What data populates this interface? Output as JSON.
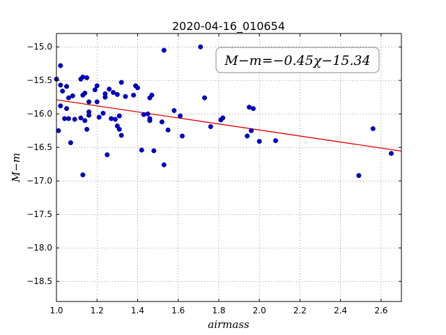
{
  "chart_data": {
    "type": "scatter",
    "title": "2020-04-16_010654",
    "xlabel": "airmass",
    "ylabel": "M−m",
    "xlim": [
      1.0,
      2.7
    ],
    "ylim": [
      -14.8,
      -18.8
    ],
    "y_inverted": true,
    "grid": true,
    "xticks": [
      "1.0",
      "1.2",
      "1.4",
      "1.6",
      "1.8",
      "2.0",
      "2.2",
      "2.4",
      "2.6"
    ],
    "yticks": [
      "−15.0",
      "−15.5",
      "−16.0",
      "−16.5",
      "−17.0",
      "−17.5",
      "−18.0",
      "−18.5"
    ],
    "annotation": "M−m=−0.45χ−15.34",
    "fit": {
      "slope": -0.45,
      "intercept": -15.34,
      "color": "#dd0000"
    },
    "point_color": "#0000cc",
    "points": [
      [
        1.0,
        -15.48
      ],
      [
        1.01,
        -16.25
      ],
      [
        1.02,
        -15.57
      ],
      [
        1.02,
        -15.28
      ],
      [
        1.02,
        -15.88
      ],
      [
        1.03,
        -15.66
      ],
      [
        1.04,
        -16.07
      ],
      [
        1.05,
        -15.59
      ],
      [
        1.05,
        -15.92
      ],
      [
        1.06,
        -16.07
      ],
      [
        1.06,
        -15.76
      ],
      [
        1.07,
        -16.43
      ],
      [
        1.08,
        -15.73
      ],
      [
        1.09,
        -16.08
      ],
      [
        1.12,
        -16.06
      ],
      [
        1.12,
        -15.48
      ],
      [
        1.13,
        -15.45
      ],
      [
        1.13,
        -15.72
      ],
      [
        1.13,
        -16.91
      ],
      [
        1.14,
        -15.69
      ],
      [
        1.14,
        -16.1
      ],
      [
        1.15,
        -15.46
      ],
      [
        1.15,
        -16.23
      ],
      [
        1.16,
        -15.97
      ],
      [
        1.16,
        -16.02
      ],
      [
        1.16,
        -15.82
      ],
      [
        1.19,
        -15.64
      ],
      [
        1.2,
        -15.58
      ],
      [
        1.2,
        -15.82
      ],
      [
        1.21,
        -16.05
      ],
      [
        1.23,
        -15.99
      ],
      [
        1.24,
        -15.7
      ],
      [
        1.24,
        -15.75
      ],
      [
        1.25,
        -16.61
      ],
      [
        1.26,
        -15.63
      ],
      [
        1.27,
        -16.07
      ],
      [
        1.28,
        -15.68
      ],
      [
        1.29,
        -16.08
      ],
      [
        1.3,
        -15.71
      ],
      [
        1.3,
        -16.18
      ],
      [
        1.31,
        -16.23
      ],
      [
        1.31,
        -16.03
      ],
      [
        1.32,
        -15.53
      ],
      [
        1.32,
        -16.32
      ],
      [
        1.34,
        -15.74
      ],
      [
        1.38,
        -15.72
      ],
      [
        1.39,
        -15.58
      ],
      [
        1.4,
        -15.61
      ],
      [
        1.42,
        -16.54
      ],
      [
        1.43,
        -16.01
      ],
      [
        1.45,
        -16.0
      ],
      [
        1.46,
        -15.76
      ],
      [
        1.46,
        -16.07
      ],
      [
        1.46,
        -16.1
      ],
      [
        1.47,
        -15.72
      ],
      [
        1.48,
        -16.55
      ],
      [
        1.52,
        -16.12
      ],
      [
        1.53,
        -16.76
      ],
      [
        1.53,
        -15.05
      ],
      [
        1.55,
        -16.24
      ],
      [
        1.58,
        -15.95
      ],
      [
        1.61,
        -16.03
      ],
      [
        1.62,
        -16.33
      ],
      [
        1.71,
        -15.0
      ],
      [
        1.73,
        -15.76
      ],
      [
        1.76,
        -16.19
      ],
      [
        1.81,
        -16.09
      ],
      [
        1.82,
        -16.06
      ],
      [
        1.94,
        -16.33
      ],
      [
        1.95,
        -15.9
      ],
      [
        1.96,
        -16.25
      ],
      [
        1.97,
        -15.92
      ],
      [
        2.0,
        -16.41
      ],
      [
        2.08,
        -16.4
      ],
      [
        2.49,
        -16.92
      ],
      [
        2.56,
        -16.22
      ],
      [
        2.65,
        -16.59
      ]
    ]
  }
}
